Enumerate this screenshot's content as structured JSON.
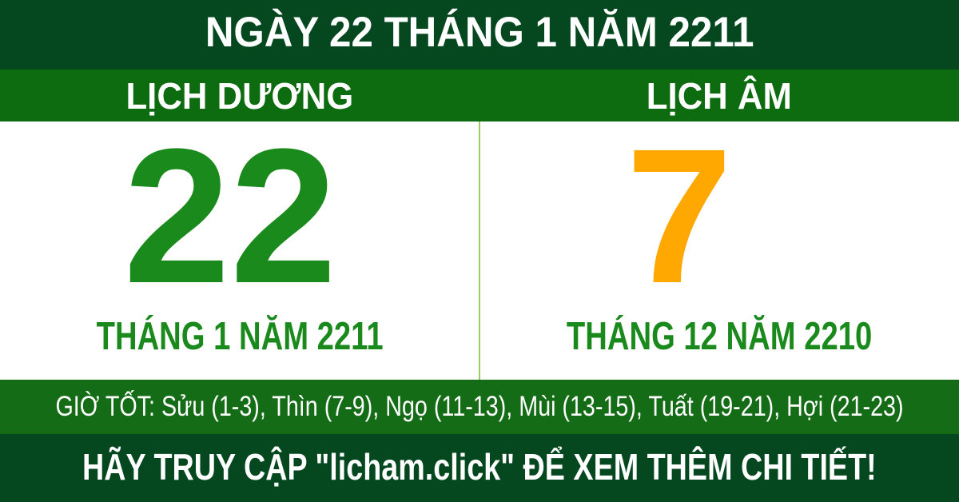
{
  "header": {
    "title": "NGÀY 22 THÁNG 1 NĂM 2211"
  },
  "solar": {
    "heading": "LỊCH DƯƠNG",
    "day": "22",
    "month_year": "THÁNG 1 NĂM 2211"
  },
  "lunar": {
    "heading": "LỊCH ÂM",
    "day": "7",
    "month_year": "THÁNG 12 NĂM 2210"
  },
  "good_hours": {
    "text": "GIỜ TỐT: Sửu (1-3), Thìn (7-9), Ngọ (11-13), Mùi (13-15), Tuất (19-21), Hợi (21-23)"
  },
  "footer": {
    "text": "HÃY TRUY CẬP \"licham.click\" ĐỂ XEM THÊM CHI TIẾT!"
  },
  "colors": {
    "dark_green": "#05481f",
    "band_green": "#0d6c0f",
    "hours_band_green": "#156c16",
    "solar_day_green": "#1b8a1c",
    "lunar_day_orange": "#ffa801",
    "divider_light_green": "#9bcd62",
    "text_white": "#ffffff"
  }
}
